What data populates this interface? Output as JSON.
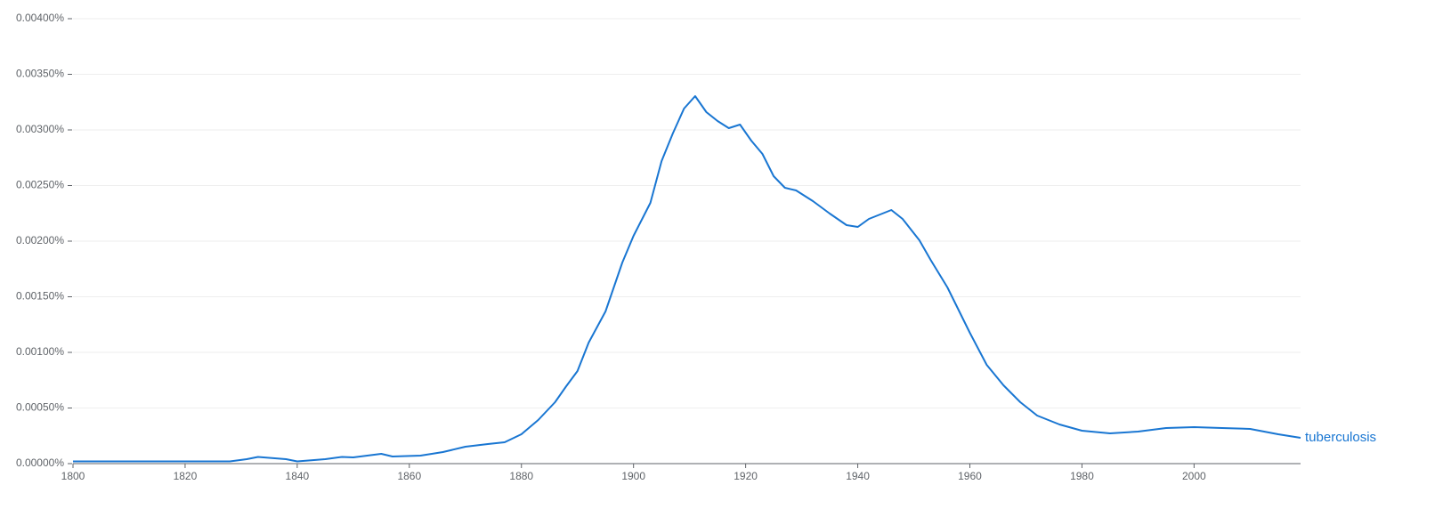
{
  "chart_data": {
    "type": "line",
    "x": [
      1800,
      1810,
      1820,
      1828,
      1831,
      1833,
      1838,
      1840,
      1845,
      1848,
      1850,
      1855,
      1857,
      1862,
      1866,
      1870,
      1874,
      1877,
      1880,
      1883,
      1886,
      1888,
      1890,
      1892,
      1895,
      1898,
      1900,
      1903,
      1905,
      1907,
      1909,
      1911,
      1913,
      1915,
      1917,
      1919,
      1921,
      1923,
      1925,
      1927,
      1929,
      1932,
      1935,
      1938,
      1940,
      1942,
      1944,
      1946,
      1948,
      1951,
      1953,
      1956,
      1960,
      1963,
      1966,
      1969,
      1972,
      1976,
      1980,
      1985,
      1990,
      1995,
      2000,
      2005,
      2010,
      2015,
      2019
    ],
    "series": [
      {
        "name": "tuberculosis",
        "color": "#1976d2",
        "values": [
          2e-05,
          2e-05,
          2e-05,
          2e-05,
          4e-05,
          6e-05,
          4e-05,
          2e-05,
          4e-05,
          6e-05,
          5.6e-05,
          8.8e-05,
          6.4e-05,
          7.2e-05,
          0.000104,
          0.000152,
          0.000176,
          0.000192,
          0.000264,
          0.000392,
          0.000552,
          0.000696,
          0.000832,
          0.001088,
          0.001368,
          0.001808,
          0.002048,
          0.002344,
          0.00272,
          0.002968,
          0.003192,
          0.003304,
          0.00316,
          0.00308,
          0.003016,
          0.003048,
          0.002904,
          0.002784,
          0.002584,
          0.00248,
          0.002456,
          0.00236,
          0.002248,
          0.002144,
          0.002128,
          0.0022,
          0.00224,
          0.00228,
          0.0022,
          0.002008,
          0.001832,
          0.001584,
          0.001176,
          0.000888,
          0.000704,
          0.000552,
          0.000432,
          0.000352,
          0.000296,
          0.000272,
          0.000288,
          0.00032,
          0.000328,
          0.00032,
          0.000312,
          0.000264,
          0.000232
        ]
      }
    ],
    "xlim": [
      1800,
      2019
    ],
    "xticks": [
      1800,
      1820,
      1840,
      1860,
      1880,
      1900,
      1920,
      1940,
      1960,
      1980,
      2000
    ],
    "ylim": [
      0,
      0.004
    ],
    "yticks": [
      {
        "value": 0,
        "label": "0.00000%"
      },
      {
        "value": 0.0005,
        "label": "0.00050%"
      },
      {
        "value": 0.001,
        "label": "0.00100%"
      },
      {
        "value": 0.0015,
        "label": "0.00150%"
      },
      {
        "value": 0.002,
        "label": "0.00200%"
      },
      {
        "value": 0.0025,
        "label": "0.00250%"
      },
      {
        "value": 0.003,
        "label": "0.00300%"
      },
      {
        "value": 0.0035,
        "label": "0.00350%"
      },
      {
        "value": 0.004,
        "label": "0.00400%"
      }
    ],
    "grid": true
  }
}
